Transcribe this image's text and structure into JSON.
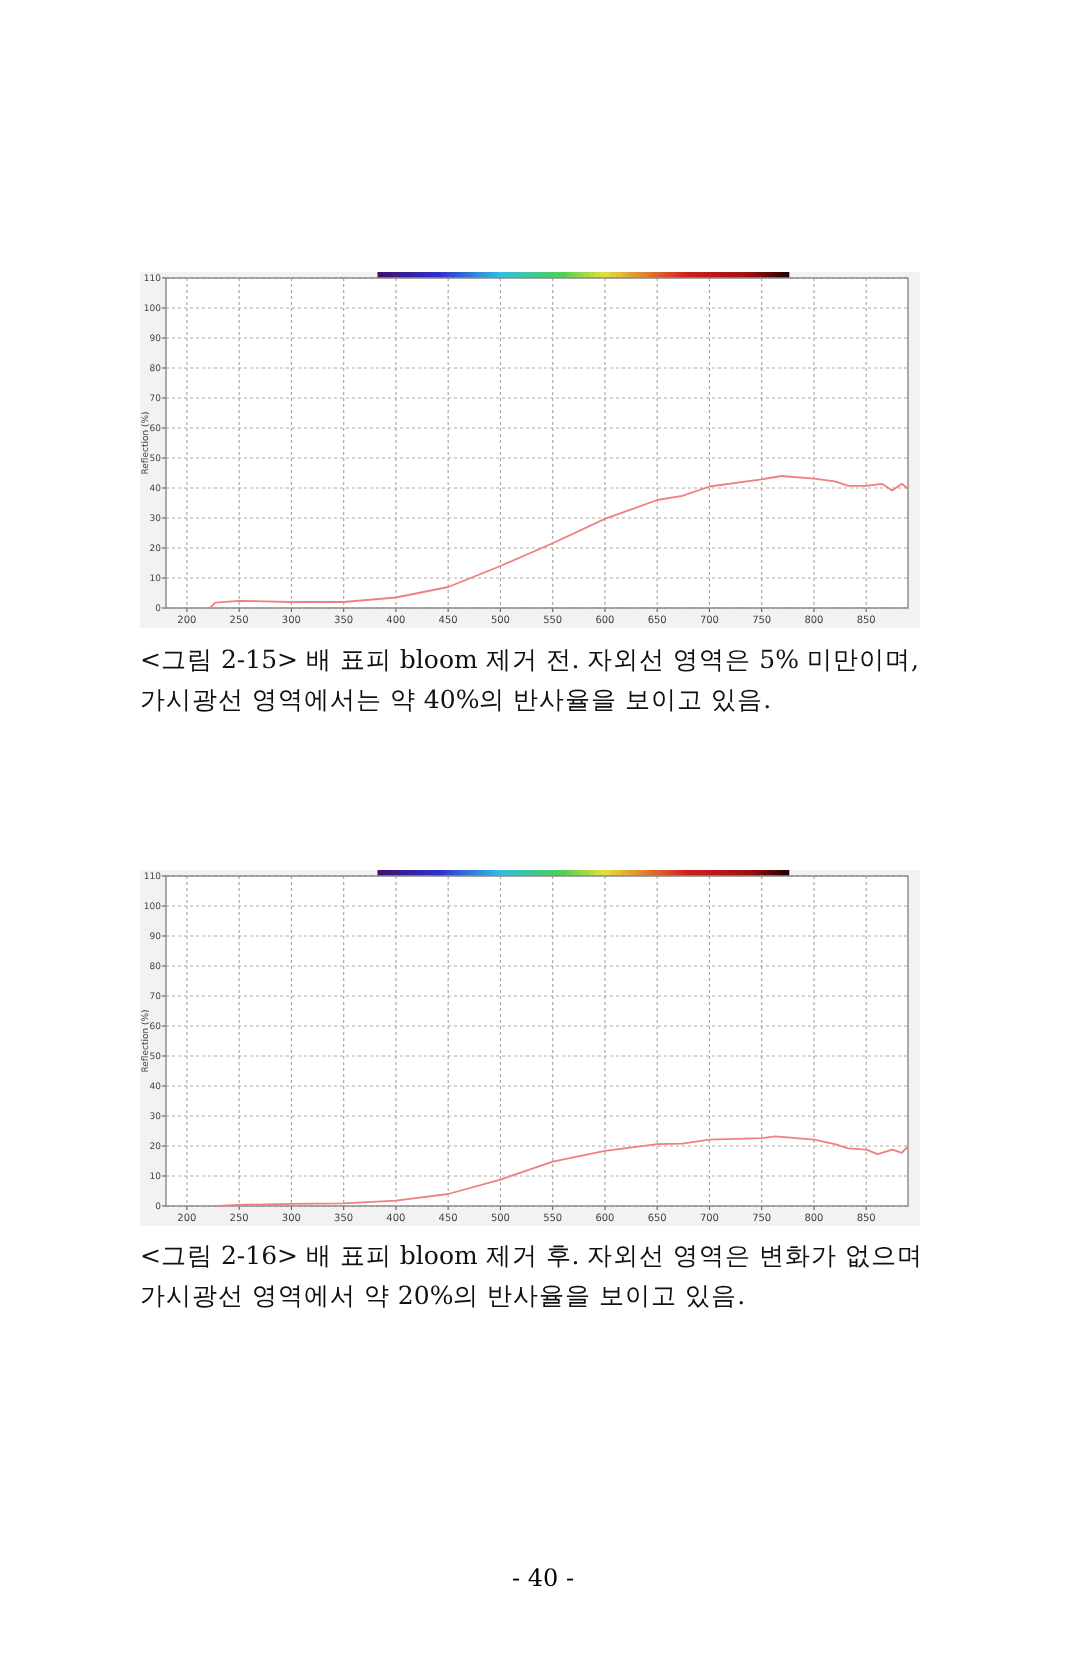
{
  "chart_data": [
    {
      "type": "line",
      "ylabel": "Reflection (%)",
      "xlim": [
        180,
        890
      ],
      "ylim": [
        0,
        110
      ],
      "xticks": [
        200,
        250,
        300,
        350,
        400,
        450,
        500,
        550,
        600,
        650,
        700,
        750,
        800,
        850
      ],
      "yticks": [
        0,
        10,
        20,
        30,
        40,
        50,
        60,
        70,
        80,
        90,
        100,
        110
      ],
      "grid": true,
      "series": [
        {
          "color": "#f08080",
          "x": [
            222,
            227,
            250,
            300,
            350,
            400,
            450,
            500,
            550,
            600,
            650,
            674,
            700,
            750,
            769,
            800,
            820,
            833,
            850,
            865,
            875,
            884,
            889
          ],
          "values": [
            0,
            1.8,
            2.4,
            2.0,
            2.0,
            3.5,
            7,
            14,
            21.6,
            29.7,
            36,
            37.4,
            40.5,
            42.9,
            44,
            43.1,
            42.2,
            40.7,
            40.7,
            41.4,
            39.2,
            41.4,
            40
          ]
        }
      ],
      "annotations": [
        "<그림 2-15> 배 표피 bloom 제거 전. 자외선 영역은 5% 미만이며, 가시광선 영역에서는 약 40%의 반사율을 보이고 있음."
      ]
    },
    {
      "type": "line",
      "ylabel": "Reflection (%)",
      "xlim": [
        180,
        890
      ],
      "ylim": [
        0,
        110
      ],
      "xticks": [
        200,
        250,
        300,
        350,
        400,
        450,
        500,
        550,
        600,
        650,
        700,
        750,
        800,
        850
      ],
      "yticks": [
        0,
        10,
        20,
        30,
        40,
        50,
        60,
        70,
        80,
        90,
        100,
        110
      ],
      "grid": true,
      "series": [
        {
          "color": "#f08080",
          "x": [
            229,
            250,
            300,
            350,
            400,
            450,
            500,
            550,
            600,
            650,
            674,
            700,
            750,
            763,
            800,
            820,
            833,
            850,
            861,
            875,
            884,
            889
          ],
          "values": [
            0,
            0.4,
            0.7,
            0.9,
            1.8,
            4.0,
            8.8,
            14.8,
            18.4,
            20.6,
            20.8,
            22.1,
            22.6,
            23.2,
            22.1,
            20.6,
            19.2,
            18.8,
            17.3,
            18.8,
            17.7,
            19.5
          ]
        }
      ],
      "annotations": [
        "<그림 2-16> 배 표피 bloom 제거 후. 자외선 영역은 변화가 없으며 가시광선 영역에서 약 20%의 반사율을 보이고 있음.",
        "- 40 -"
      ]
    }
  ]
}
